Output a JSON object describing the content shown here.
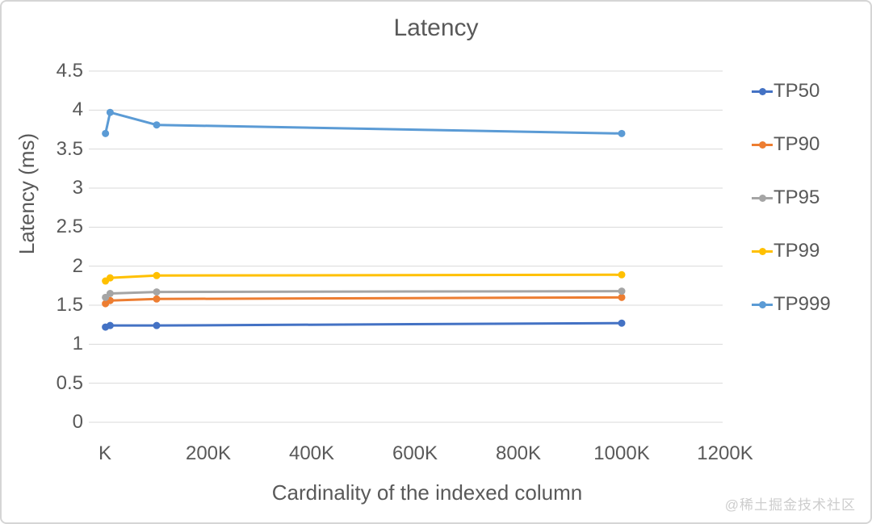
{
  "title": "Latency",
  "watermark": "@稀土掘金技术社区",
  "chart_data": {
    "type": "line",
    "title": "Latency",
    "xlabel": "Cardinality of the indexed column",
    "ylabel": "Latency (ms)",
    "x_values_thousands": [
      1,
      10,
      100,
      1000
    ],
    "x_tick_labels": [
      "K",
      "200K",
      "400K",
      "600K",
      "800K",
      "1000K",
      "1200K"
    ],
    "x_tick_values_thousands": [
      0,
      200,
      400,
      600,
      800,
      1000,
      1200
    ],
    "y_tick_labels": [
      "4.5",
      "4",
      "3.5",
      "3",
      "2.5",
      "2",
      "1.5",
      "1",
      "0.5",
      "0"
    ],
    "ylim": [
      0,
      4.5
    ],
    "grid": "horizontal-only",
    "legend_position": "right",
    "marker": "circle",
    "series": [
      {
        "name": "TP50",
        "color": "#4472C4",
        "values": [
          1.22,
          1.24,
          1.24,
          1.27
        ]
      },
      {
        "name": "TP90",
        "color": "#ED7D31",
        "values": [
          1.52,
          1.56,
          1.58,
          1.6
        ]
      },
      {
        "name": "TP95",
        "color": "#A5A5A5",
        "values": [
          1.6,
          1.65,
          1.67,
          1.68
        ]
      },
      {
        "name": "TP99",
        "color": "#FFC000",
        "values": [
          1.81,
          1.85,
          1.88,
          1.89
        ]
      },
      {
        "name": "TP999",
        "color": "#5B9BD5",
        "values": [
          3.7,
          3.97,
          3.81,
          3.7
        ]
      }
    ]
  },
  "colors": {
    "grid": "#d9d9d9",
    "text": "#595959",
    "watermark": "#cdcdcd"
  }
}
